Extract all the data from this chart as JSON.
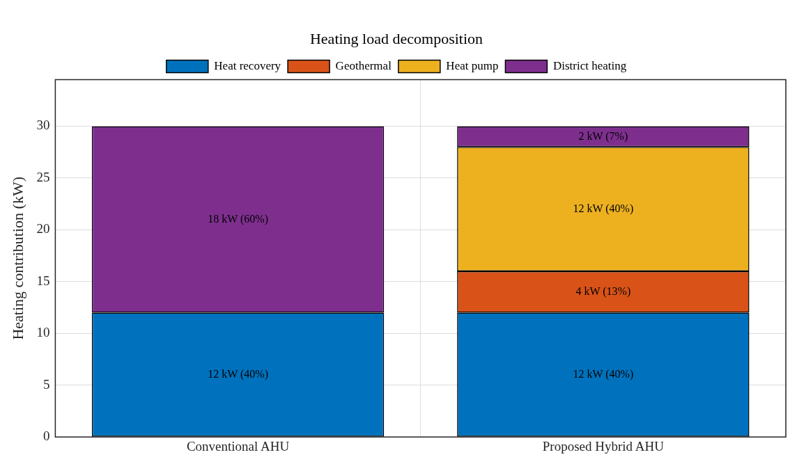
{
  "chart_data": {
    "type": "bar",
    "title": "Heating load decomposition",
    "ylabel": "Heating contribution (kW)",
    "categories": [
      "Conventional AHU",
      "Proposed Hybrid AHU"
    ],
    "stacked": true,
    "series": [
      {
        "name": "Heat recovery",
        "color": "#0072bd",
        "values": [
          12,
          12
        ],
        "value_labels": [
          "12 kW (40%)",
          "12 kW (40%)"
        ]
      },
      {
        "name": "Geothermal",
        "color": "#d95319",
        "values": [
          0,
          4
        ],
        "value_labels": [
          null,
          "4 kW (13%)"
        ]
      },
      {
        "name": "Heat pump",
        "color": "#edb120",
        "values": [
          0,
          12
        ],
        "value_labels": [
          null,
          "12 kW (40%)"
        ]
      },
      {
        "name": "District heating",
        "color": "#7e2f8e",
        "values": [
          18,
          2
        ],
        "value_labels": [
          "18 kW (60%)",
          "2 kW (7%)"
        ]
      }
    ],
    "ylim": [
      0,
      34.5
    ],
    "yticks": [
      0,
      5,
      10,
      15,
      20,
      25,
      30
    ],
    "grid": true,
    "legend": "top"
  }
}
